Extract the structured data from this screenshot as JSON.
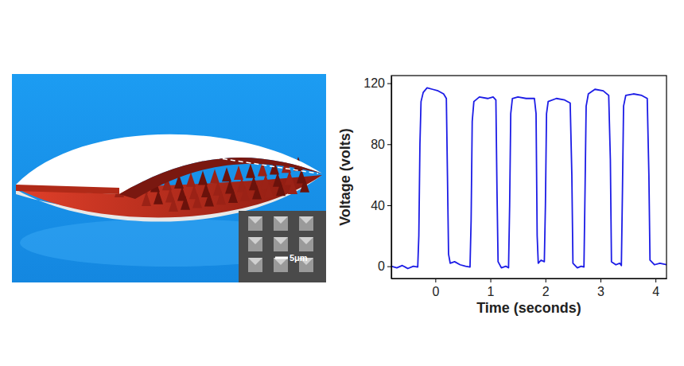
{
  "chart_data": {
    "type": "line",
    "x_label": "Time (seconds)",
    "y_label": "Voltage (volts)",
    "color": "#1c1ce6",
    "xlim": [
      -0.8,
      4.2
    ],
    "xticks": [
      0,
      1,
      2,
      3,
      4
    ],
    "ylim": [
      -8,
      125
    ],
    "yticks": [
      0,
      40,
      80,
      120
    ],
    "grid": false,
    "x": [
      -0.8,
      -0.7,
      -0.6,
      -0.5,
      -0.4,
      -0.32,
      -0.3,
      -0.28,
      -0.26,
      -0.22,
      -0.15,
      -0.05,
      0.05,
      0.15,
      0.2,
      0.22,
      0.24,
      0.27,
      0.35,
      0.45,
      0.55,
      0.63,
      0.65,
      0.67,
      0.7,
      0.8,
      0.95,
      1.05,
      1.1,
      1.12,
      1.14,
      1.2,
      1.28,
      1.33,
      1.35,
      1.37,
      1.4,
      1.5,
      1.65,
      1.8,
      1.83,
      1.85,
      1.87,
      1.92,
      1.98,
      2.0,
      2.02,
      2.05,
      2.2,
      2.35,
      2.45,
      2.48,
      2.5,
      2.58,
      2.65,
      2.7,
      2.72,
      2.74,
      2.78,
      2.9,
      3.05,
      3.15,
      3.18,
      3.2,
      3.28,
      3.35,
      3.38,
      3.4,
      3.42,
      3.46,
      3.6,
      3.75,
      3.85,
      3.88,
      3.9,
      3.98,
      4.08,
      4.2
    ],
    "values": [
      0,
      -1,
      0.5,
      -1.5,
      0,
      -0.5,
      20,
      80,
      108,
      114,
      117,
      116,
      115,
      113,
      110,
      60,
      8,
      2,
      3,
      1,
      0,
      -0.5,
      30,
      95,
      108,
      111,
      110,
      111,
      109,
      50,
      3,
      -1,
      0,
      -1,
      40,
      100,
      110,
      111,
      110,
      110,
      100,
      20,
      2,
      4,
      3,
      40,
      100,
      108,
      110,
      109,
      107,
      60,
      2,
      -1,
      0,
      -0.5,
      50,
      105,
      113,
      116,
      115,
      112,
      70,
      3,
      1,
      2,
      0.5,
      50,
      105,
      112,
      113,
      112,
      110,
      60,
      4,
      1,
      2,
      1
    ]
  },
  "illustration": {
    "scale_bar": "5μm"
  }
}
